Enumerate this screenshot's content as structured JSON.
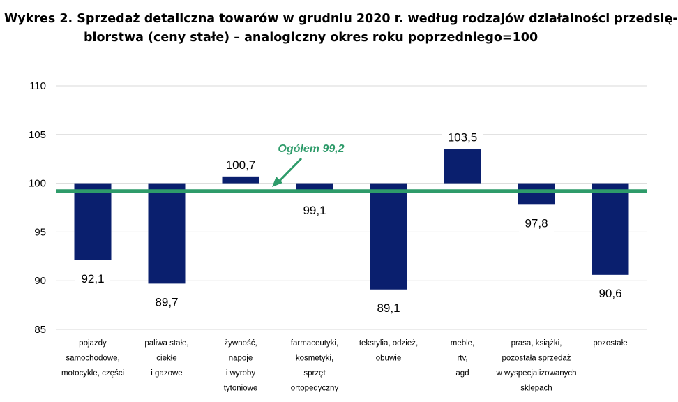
{
  "chart_data": {
    "type": "bar",
    "title_lines": [
      "Wykres 2. Sprzedaż detaliczna towarów w grudniu 2020 r. według rodzajów działalności przedsię-",
      "biorstwa (ceny stałe) – analogiczny okres roku poprzedniego=100"
    ],
    "baseline": 100,
    "ylim": [
      85,
      110
    ],
    "yticks": [
      85,
      90,
      95,
      100,
      105,
      110
    ],
    "ytick_labels": [
      "85",
      "90",
      "95",
      "100",
      "105",
      "110"
    ],
    "grid": true,
    "categories": [
      [
        "pojazdy",
        "samochodowe,",
        "motocykle, części"
      ],
      [
        "paliwa stałe,",
        "ciekłe",
        "i gazowe"
      ],
      [
        "żywność,",
        "napoje",
        "i wyroby",
        "tytoniowe"
      ],
      [
        "farmaceutyki,",
        "kosmetyki,",
        "sprzęt",
        "ortopedyczny"
      ],
      [
        "tekstylia, odzież,",
        "obuwie"
      ],
      [
        "meble,",
        "rtv,",
        "agd"
      ],
      [
        "prasa, książki,",
        "pozostała sprzedaż",
        "w wyspecjalizowanych",
        "sklepach"
      ],
      [
        "pozostałe"
      ]
    ],
    "values": [
      92.1,
      89.7,
      100.7,
      99.1,
      89.1,
      103.5,
      97.8,
      90.6
    ],
    "value_labels": [
      "92,1",
      "89,7",
      "100,7",
      "99,1",
      "89,1",
      "103,5",
      "97,8",
      "90,6"
    ],
    "reference_line": {
      "value": 99.2,
      "label": "Ogółem 99,2"
    },
    "colors": {
      "bar": "#0a1f6e",
      "reference": "#2e9b6a",
      "grid": "#d9d9d9"
    }
  }
}
